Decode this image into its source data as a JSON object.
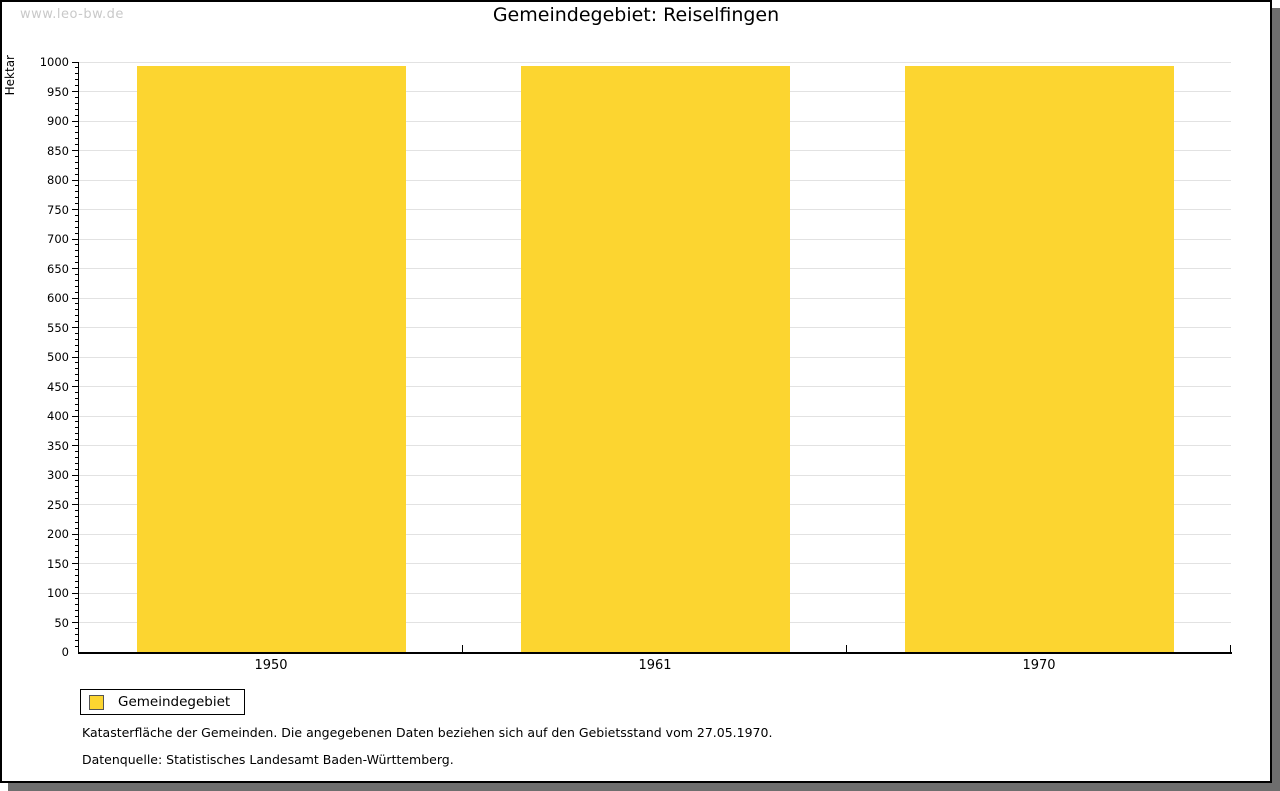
{
  "watermark": "www.leo-bw.de",
  "title": "Gemeindegebiet: Reiselfingen",
  "chart_data": {
    "type": "bar",
    "title": "Gemeindegebiet: Reiselfingen",
    "categories": [
      "1950",
      "1961",
      "1970"
    ],
    "series": [
      {
        "name": "Gemeindegebiet",
        "values": [
          994,
          994,
          994
        ]
      }
    ],
    "xlabel": "",
    "ylabel": "Hektar",
    "ylim": [
      0,
      1000
    ],
    "y_major_step": 50,
    "y_minor_step": 10,
    "grid": true,
    "bar_color": "#FCD530",
    "gridline_color": "#e2e2e2",
    "legend_position": "bottom-left"
  },
  "legend": {
    "items": [
      {
        "label": "Gemeindegebiet",
        "color": "#FCD530"
      }
    ]
  },
  "footer": {
    "line1": "Katasterfläche der Gemeinden. Die angegebenen Daten beziehen sich auf den Gebietsstand vom 27.05.1970.",
    "line2": "Datenquelle: Statistisches Landesamt Baden-Württemberg."
  }
}
